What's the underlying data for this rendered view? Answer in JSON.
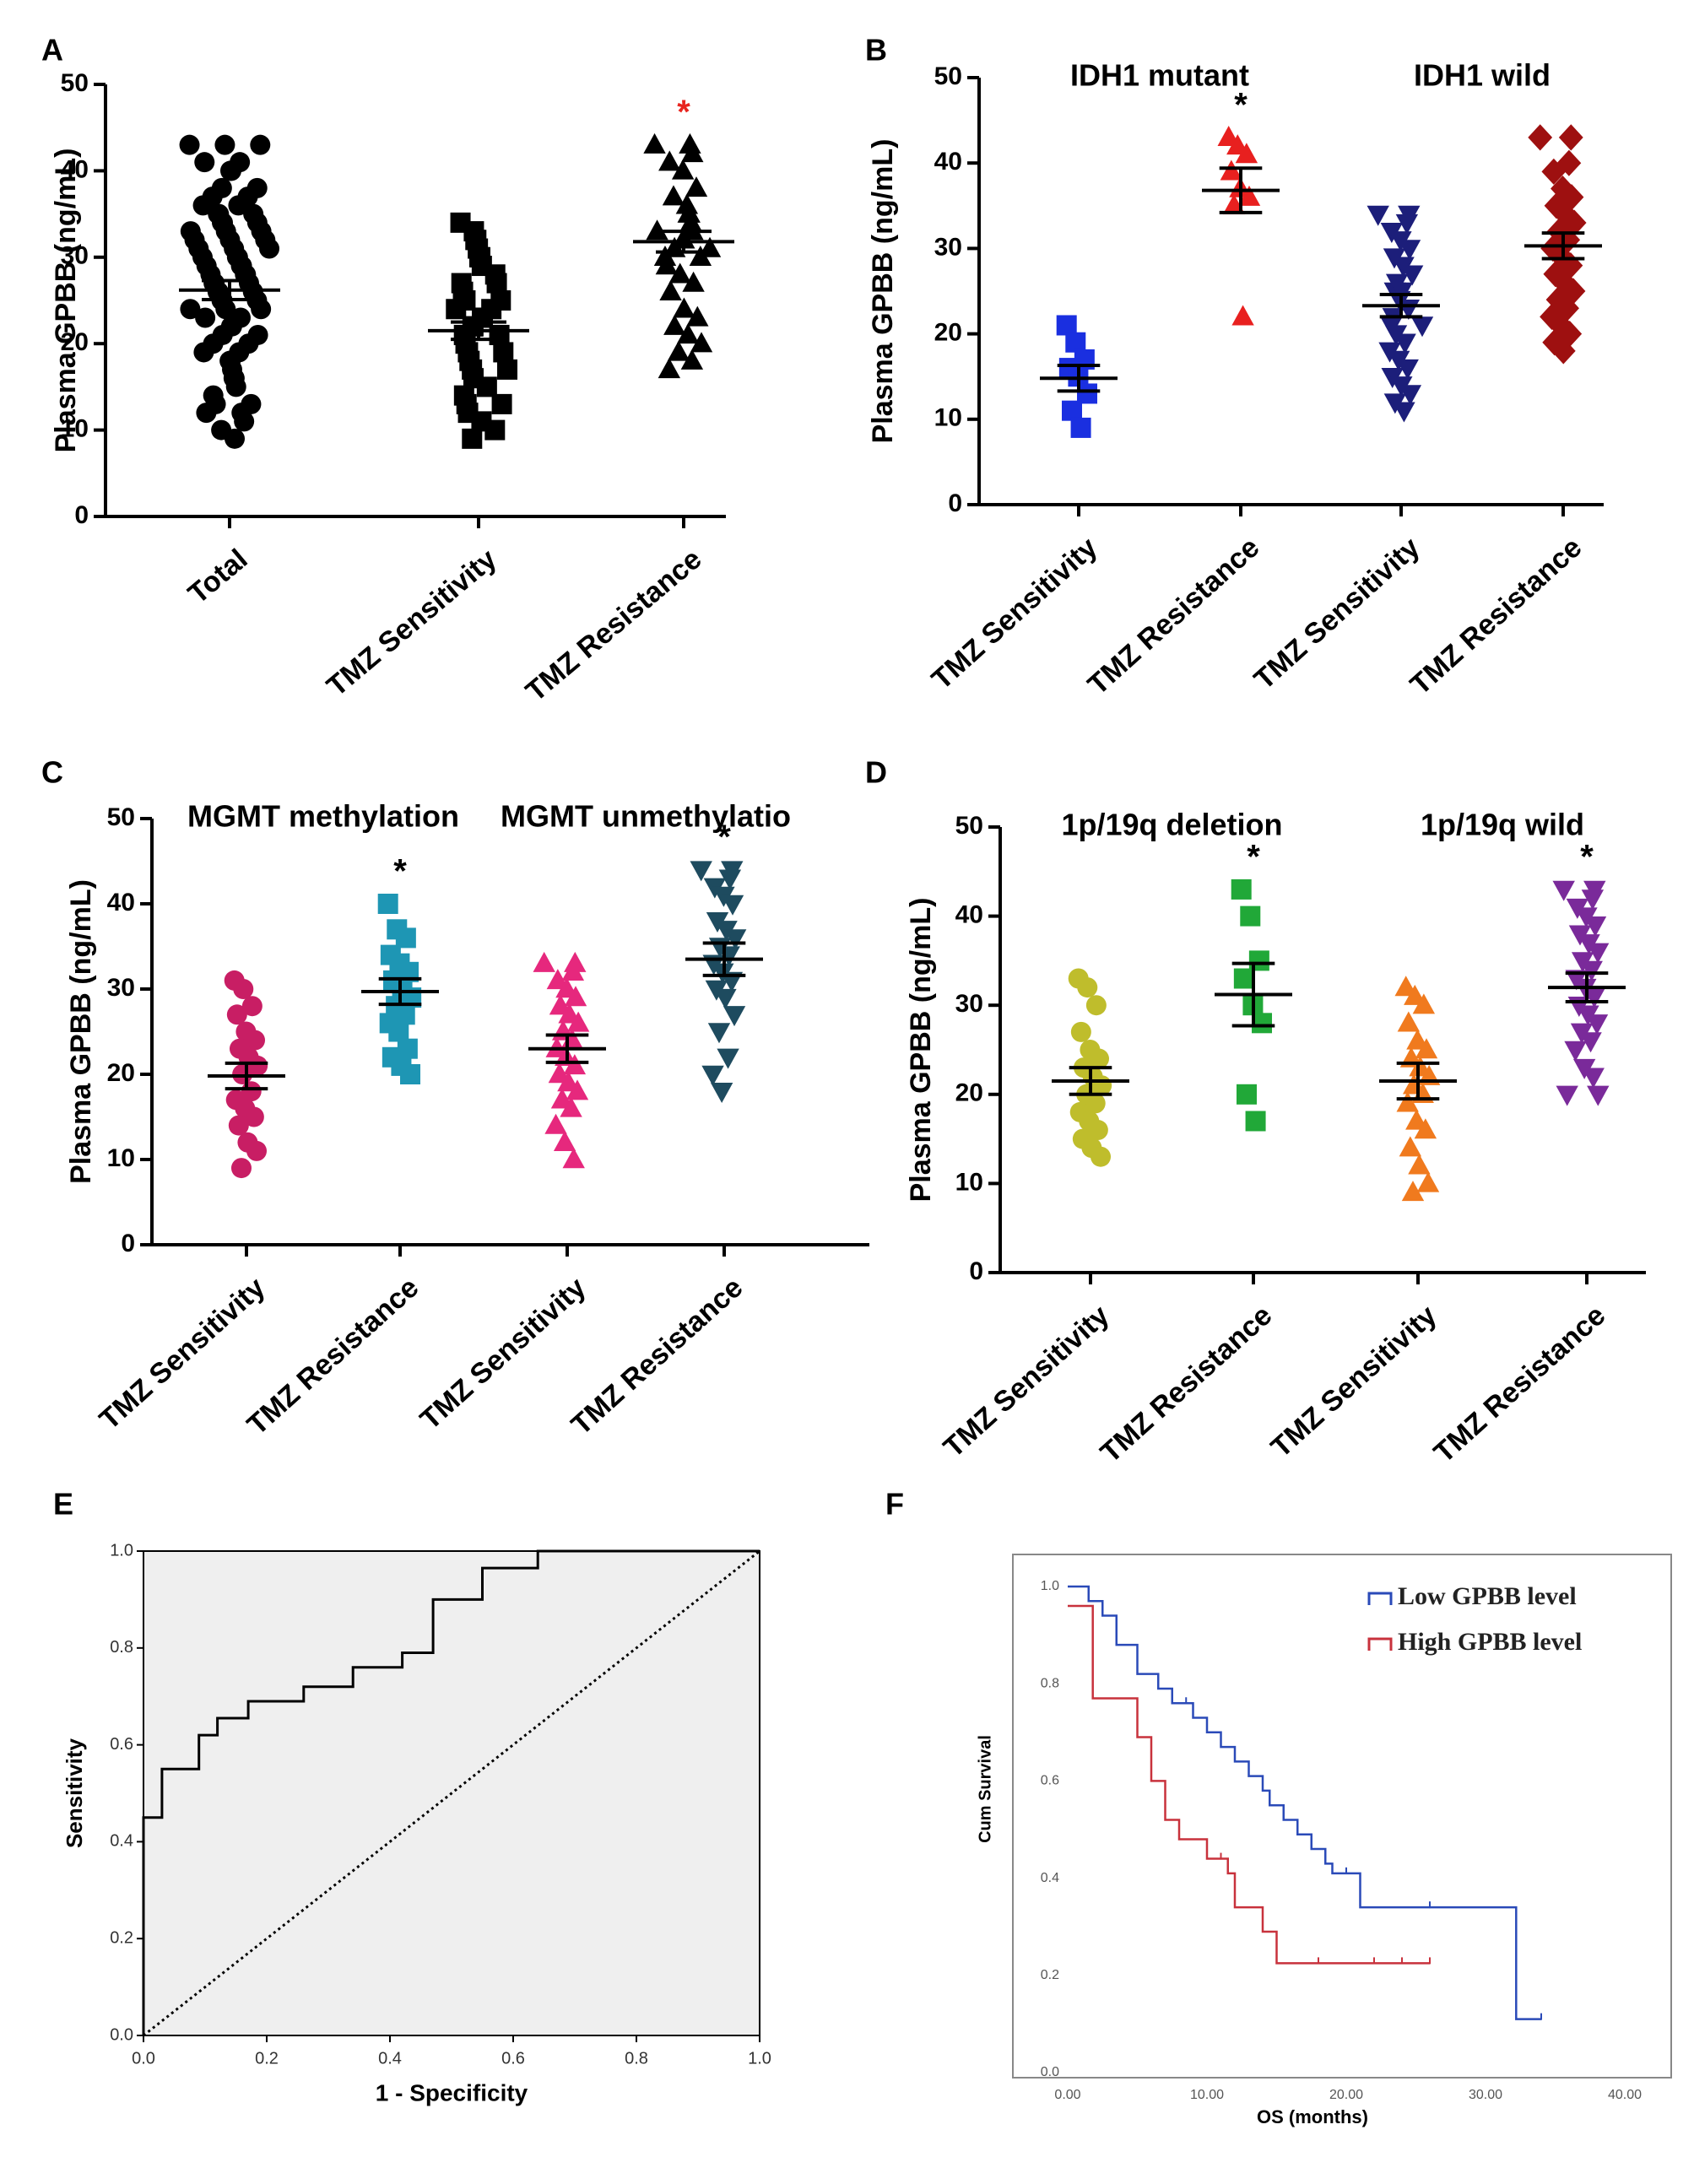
{
  "chart_data": [
    {
      "panel": "A",
      "type": "scatter",
      "ylabel": "Plasma GPBB (ng/mL)",
      "ylim": [
        0,
        50
      ],
      "yticks": [
        0,
        10,
        20,
        30,
        40,
        50
      ],
      "categories": [
        "Total",
        "TMZ Sensitivity",
        "TMZ Resistance"
      ],
      "group_titles": [],
      "series": [
        {
          "name": "Total",
          "marker": "circle",
          "color": "#000000",
          "mean": 26.2,
          "sem": 1.1,
          "values": [
            43,
            43,
            43,
            41,
            41,
            40,
            40,
            38,
            38,
            37,
            37,
            36,
            36,
            35,
            35,
            35,
            34,
            34,
            34,
            33,
            33,
            33,
            32,
            32,
            32,
            31,
            31,
            31,
            30,
            30,
            30,
            29,
            29,
            29,
            28,
            28,
            28,
            27,
            27,
            27,
            26,
            26,
            26,
            25,
            25,
            25,
            24,
            24,
            24,
            23,
            23,
            22,
            22,
            21,
            21,
            20,
            20,
            19,
            19,
            18,
            18,
            17,
            16,
            16,
            15,
            14,
            13,
            13,
            12,
            12,
            11,
            10,
            9
          ]
        },
        {
          "name": "TMZ Sensitivity",
          "marker": "square",
          "color": "#000000",
          "mean": 21.5,
          "sem": 1.0,
          "values": [
            34,
            33,
            32,
            32,
            31,
            30,
            30,
            29,
            28,
            27,
            27,
            26,
            25,
            25,
            24,
            24,
            23,
            23,
            22,
            22,
            21,
            21,
            20,
            19,
            19,
            18,
            17,
            17,
            16,
            15,
            14,
            13,
            13,
            12,
            11,
            10,
            9
          ]
        },
        {
          "name": "TMZ Resistance",
          "marker": "triangle",
          "color": "#000000",
          "mean": 31.8,
          "sem": 1.2,
          "values": [
            43,
            43,
            42,
            41,
            40,
            38,
            37,
            36,
            35,
            35,
            34,
            33,
            33,
            32,
            32,
            31,
            31,
            30,
            30,
            29,
            28,
            27,
            26,
            24,
            23,
            22,
            21,
            20,
            19,
            18,
            17
          ]
        }
      ],
      "annotations": [
        {
          "text": "*",
          "category": 2,
          "color": "#e8251f"
        }
      ]
    },
    {
      "panel": "B",
      "type": "scatter",
      "ylabel": "Plasma GPBB (ng/mL)",
      "ylim": [
        0,
        50
      ],
      "yticks": [
        0,
        10,
        20,
        30,
        40,
        50
      ],
      "categories": [
        "TMZ Sensitivity",
        "TMZ Resistance",
        "TMZ Sensitivity",
        "TMZ Resistance"
      ],
      "group_titles": [
        {
          "text": "IDH1 mutant",
          "cat_from": 0,
          "cat_to": 1
        },
        {
          "text": "IDH1 wild",
          "cat_from": 2,
          "cat_to": 3
        }
      ],
      "series": [
        {
          "name": "IDH1 mutant TMZ Sensitivity",
          "marker": "square",
          "color": "#1a2fe0",
          "mean": 14.8,
          "sem": 1.5,
          "values": [
            21,
            19,
            17,
            16,
            15,
            13,
            11,
            9
          ]
        },
        {
          "name": "IDH1 mutant TMZ Resistance",
          "marker": "triangle",
          "color": "#e8201f",
          "mean": 36.8,
          "sem": 2.6,
          "values": [
            43,
            42,
            41,
            39,
            37,
            36,
            35,
            22
          ]
        },
        {
          "name": "IDH1 wild TMZ Sensitivity",
          "marker": "triangle-down",
          "color": "#1c1e7a",
          "mean": 23.3,
          "sem": 1.3,
          "values": [
            34,
            34,
            33,
            32,
            31,
            30,
            29,
            28,
            27,
            26,
            25,
            25,
            24,
            23,
            22,
            21,
            21,
            20,
            19,
            18,
            17,
            16,
            15,
            14,
            13,
            12,
            11
          ]
        },
        {
          "name": "IDH1 wild TMZ Resistance",
          "marker": "diamond",
          "color": "#9e1010",
          "mean": 30.3,
          "sem": 1.5,
          "values": [
            43,
            43,
            40,
            39,
            37,
            36,
            35,
            34,
            33,
            32,
            31,
            30,
            29,
            28,
            27,
            26,
            25,
            24,
            23,
            22,
            21,
            20,
            19,
            18
          ]
        }
      ],
      "annotations": [
        {
          "text": "*",
          "category": 1,
          "color": "#000000"
        }
      ]
    },
    {
      "panel": "C",
      "type": "scatter",
      "ylabel": "Plasma GPBB (ng/mL)",
      "ylim": [
        0,
        50
      ],
      "yticks": [
        0,
        10,
        20,
        30,
        40,
        50
      ],
      "categories": [
        "TMZ Sensitivity",
        "TMZ Resistance",
        "TMZ Sensitivity",
        "TMZ Resistance"
      ],
      "group_titles": [
        {
          "text": "MGMT methylation",
          "cat_from": 0,
          "cat_to": 1
        },
        {
          "text": "MGMT unmethylatio",
          "cat_from": 2,
          "cat_to": 3
        }
      ],
      "series": [
        {
          "name": "MGMT methylation TMZ Sensitivity",
          "marker": "circle",
          "color": "#c81e64",
          "mean": 19.8,
          "sem": 1.5,
          "values": [
            31,
            30,
            28,
            27,
            25,
            24,
            23,
            22,
            21,
            20,
            18,
            17,
            16,
            15,
            14,
            12,
            11,
            9
          ]
        },
        {
          "name": "MGMT methylation TMZ Resistance",
          "marker": "square",
          "color": "#1e96b4",
          "mean": 29.7,
          "sem": 1.5,
          "values": [
            40,
            37,
            36,
            34,
            33,
            32,
            31,
            30,
            29,
            28,
            27,
            26,
            25,
            23,
            22,
            21,
            20
          ]
        },
        {
          "name": "MGMT unmethylation TMZ Sensitivity",
          "marker": "triangle",
          "color": "#e6287d",
          "mean": 23.0,
          "sem": 1.6,
          "values": [
            33,
            33,
            32,
            31,
            30,
            29,
            28,
            27,
            26,
            25,
            24,
            23,
            22,
            21,
            20,
            19,
            18,
            17,
            16,
            14,
            12,
            10
          ]
        },
        {
          "name": "MGMT unmethylation TMZ Resistance",
          "marker": "triangle-down",
          "color": "#1e4b5f",
          "mean": 33.5,
          "sem": 1.9,
          "values": [
            44,
            44,
            43,
            42,
            41,
            40,
            38,
            37,
            36,
            35,
            34,
            33,
            32,
            31,
            30,
            29,
            27,
            25,
            22,
            20,
            18
          ]
        }
      ],
      "annotations": [
        {
          "text": "*",
          "category": 1,
          "color": "#000000"
        },
        {
          "text": "*",
          "category": 3,
          "color": "#000000"
        }
      ]
    },
    {
      "panel": "D",
      "type": "scatter",
      "ylabel": "Plasma GPBB (ng/mL)",
      "ylim": [
        0,
        50
      ],
      "yticks": [
        0,
        10,
        20,
        30,
        40,
        50
      ],
      "categories": [
        "TMZ Sensitivity",
        "TMZ Resistance",
        "TMZ Sensitivity",
        "TMZ Resistance"
      ],
      "group_titles": [
        {
          "text": "1p/19q deletion",
          "cat_from": 0,
          "cat_to": 1
        },
        {
          "text": "1p/19q wild",
          "cat_from": 2,
          "cat_to": 3
        }
      ],
      "series": [
        {
          "name": "1p/19q deletion TMZ Sensitivity",
          "marker": "circle",
          "color": "#bfbd2c",
          "mean": 21.5,
          "sem": 1.5,
          "values": [
            33,
            32,
            30,
            27,
            25,
            24,
            23,
            22,
            21,
            20,
            19,
            18,
            17,
            16,
            15,
            14,
            13
          ]
        },
        {
          "name": "1p/19q deletion TMZ Resistance",
          "marker": "square",
          "color": "#21a838",
          "mean": 31.2,
          "sem": 3.5,
          "values": [
            43,
            40,
            35,
            33,
            30,
            28,
            20,
            17
          ]
        },
        {
          "name": "1p/19q wild TMZ Sensitivity",
          "marker": "triangle",
          "color": "#f07a1e",
          "mean": 21.5,
          "sem": 2.0,
          "values": [
            32,
            31,
            30,
            28,
            26,
            25,
            24,
            23,
            22,
            21,
            20,
            19,
            17,
            16,
            14,
            12,
            10,
            9
          ]
        },
        {
          "name": "1p/19q wild TMZ Resistance",
          "marker": "triangle-down",
          "color": "#7a2a9a",
          "mean": 32.0,
          "sem": 1.6,
          "values": [
            43,
            43,
            42,
            41,
            40,
            39,
            38,
            37,
            36,
            35,
            34,
            33,
            32,
            31,
            30,
            29,
            28,
            27,
            26,
            25,
            23,
            22,
            20,
            20
          ]
        }
      ],
      "annotations": [
        {
          "text": "*",
          "category": 1,
          "color": "#000000"
        },
        {
          "text": "*",
          "category": 3,
          "color": "#000000"
        }
      ]
    },
    {
      "panel": "E",
      "type": "line",
      "xlabel": "1 - Specificity",
      "ylabel": "Sensitivity",
      "xlim": [
        0,
        1
      ],
      "ylim": [
        0,
        1
      ],
      "xticks": [
        "0.0",
        "0.2",
        "0.4",
        "0.6",
        "0.8",
        "1.0"
      ],
      "yticks": [
        "0.0",
        "0.2",
        "0.4",
        "0.6",
        "0.8",
        "1.0"
      ],
      "series": [
        {
          "name": "ROC",
          "x": [
            0,
            0,
            0.03,
            0.03,
            0.09,
            0.09,
            0.12,
            0.12,
            0.17,
            0.17,
            0.26,
            0.26,
            0.34,
            0.34,
            0.42,
            0.42,
            0.47,
            0.47,
            0.55,
            0.55,
            0.64,
            0.64,
            1.0
          ],
          "y": [
            0,
            0.45,
            0.45,
            0.55,
            0.55,
            0.62,
            0.62,
            0.655,
            0.655,
            0.69,
            0.69,
            0.72,
            0.72,
            0.76,
            0.76,
            0.79,
            0.79,
            0.9,
            0.9,
            0.965,
            0.965,
            1.0,
            1.0
          ]
        },
        {
          "name": "Reference",
          "x": [
            0,
            1
          ],
          "y": [
            0,
            1
          ]
        }
      ]
    },
    {
      "panel": "F",
      "type": "line",
      "xlabel": "OS (months)",
      "ylabel": "Cum Survival",
      "xlim": [
        0,
        40
      ],
      "ylim": [
        0,
        1
      ],
      "xticks": [
        "0.00",
        "10.00",
        "20.00",
        "30.00",
        "40.00"
      ],
      "yticks": [
        "0.0",
        "0.2",
        "0.4",
        "0.6",
        "0.8",
        "1.0"
      ],
      "legend": [
        "Low GPBB level",
        "High GPBB level"
      ],
      "series": [
        {
          "name": "Low GPBB level",
          "color": "#2a4ab8",
          "x": [
            0,
            1.5,
            2.5,
            3.5,
            5,
            6.5,
            7.5,
            9,
            10,
            11,
            12,
            13,
            14,
            14.5,
            15.5,
            16.5,
            17.5,
            18.5,
            19,
            21,
            32,
            32.2,
            34
          ],
          "y": [
            1.0,
            0.97,
            0.94,
            0.88,
            0.82,
            0.79,
            0.76,
            0.73,
            0.7,
            0.67,
            0.64,
            0.61,
            0.58,
            0.55,
            0.52,
            0.49,
            0.46,
            0.43,
            0.41,
            0.34,
            0.34,
            0.11,
            0.11
          ],
          "censor_x": [
            8.5,
            20,
            26,
            34
          ]
        },
        {
          "name": "High GPBB level",
          "color": "#c8323c",
          "x": [
            0,
            1.8,
            5,
            6,
            7,
            8,
            10,
            11.5,
            12,
            14,
            15,
            26
          ],
          "y": [
            0.96,
            0.77,
            0.69,
            0.6,
            0.52,
            0.48,
            0.44,
            0.41,
            0.34,
            0.29,
            0.225,
            0.225
          ],
          "censor_x": [
            11,
            18,
            22,
            24,
            26
          ]
        }
      ]
    }
  ]
}
